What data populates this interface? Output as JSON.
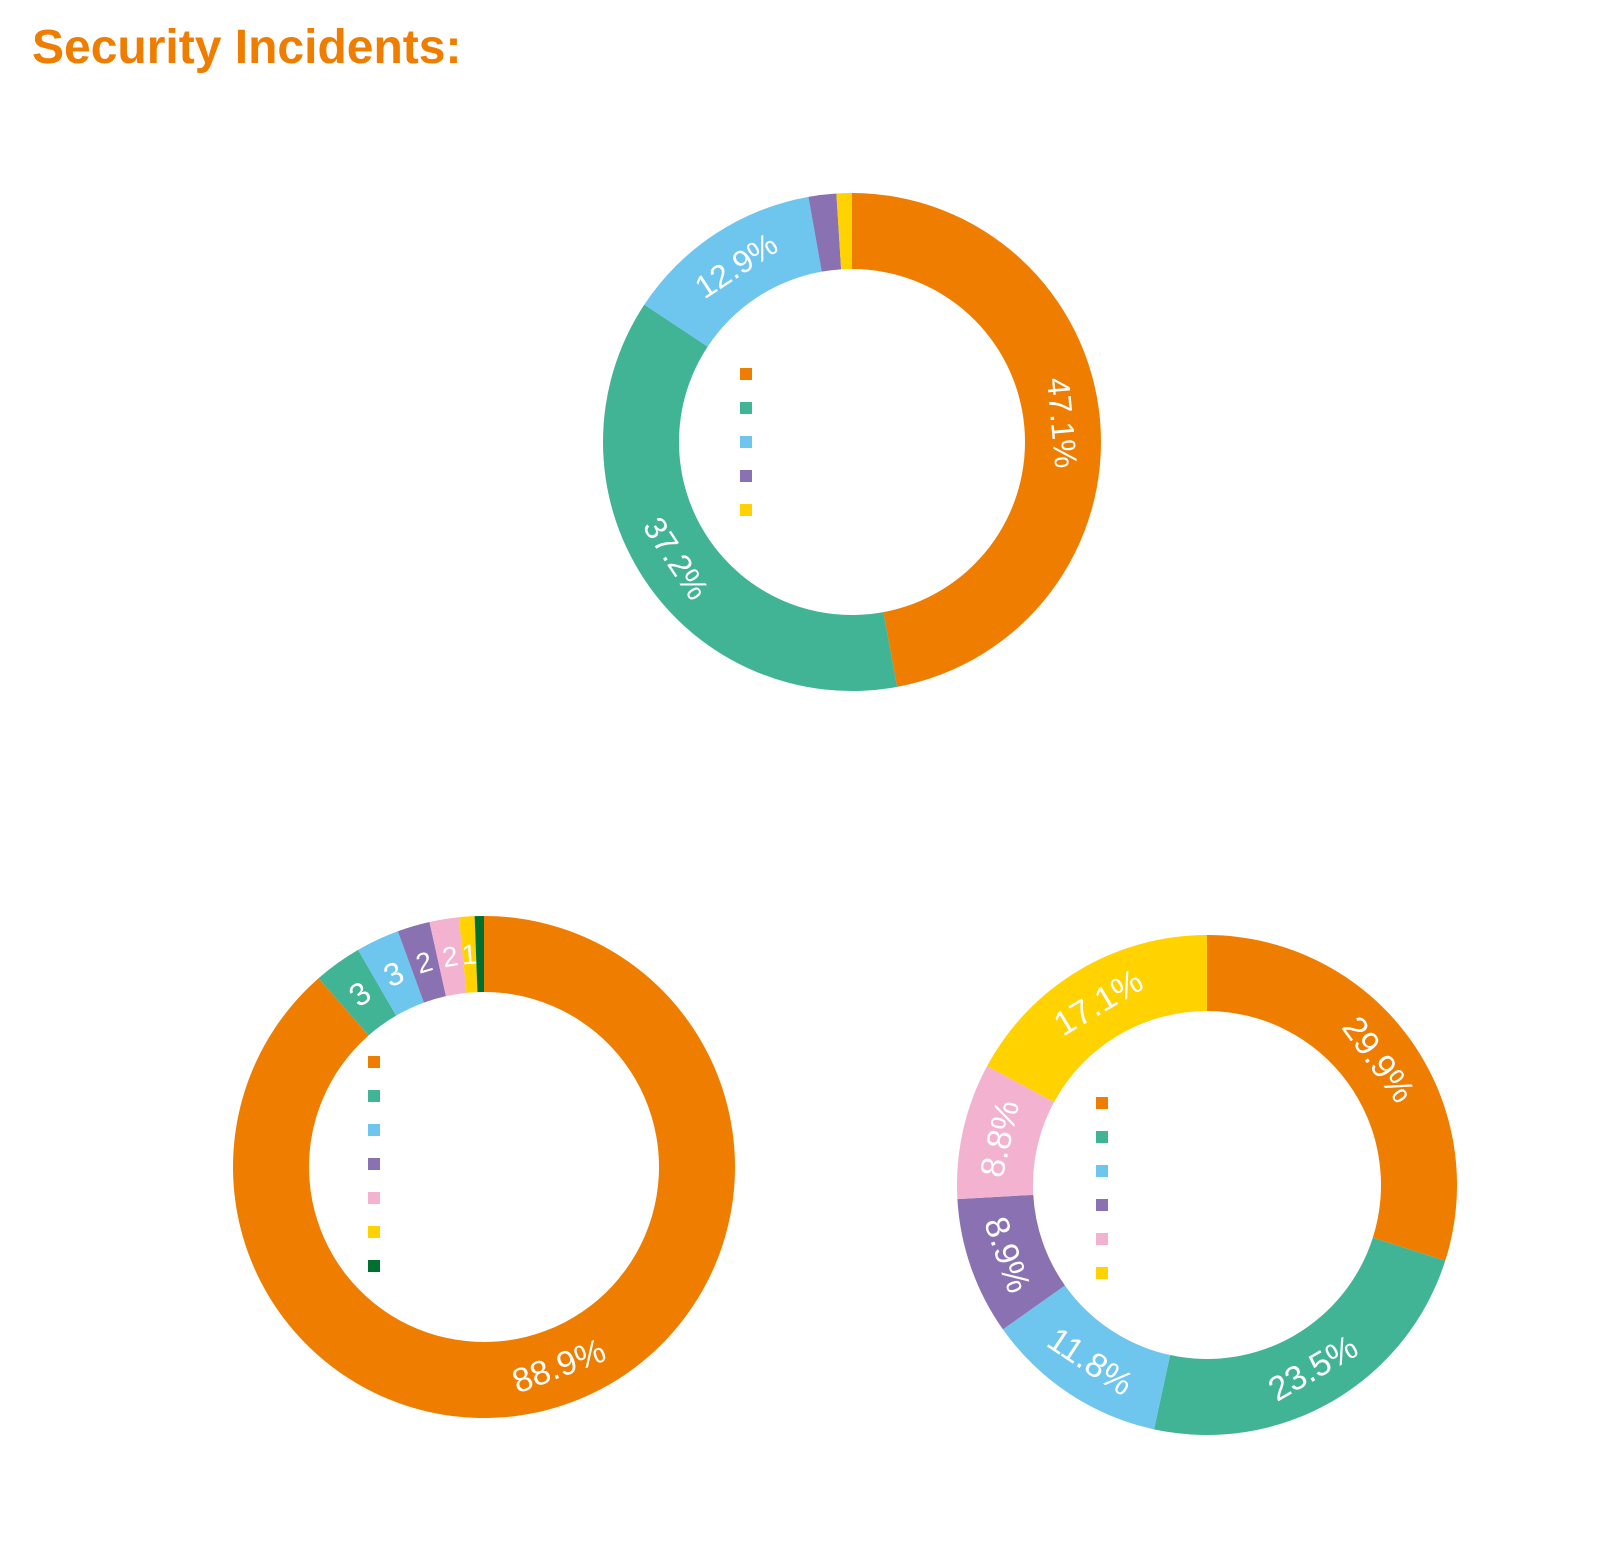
{
  "page": {
    "title": "Security Incidents:",
    "title_color": "#ef7d00"
  },
  "chart_data": [
    {
      "type": "pie",
      "style": "donut",
      "values": [
        47.1,
        37.2,
        12.9,
        1.8,
        1.0
      ],
      "labels": [
        "47.1%",
        "37.2%",
        "12.9%",
        "",
        ""
      ],
      "colors": [
        "#ef7d00",
        "#41b496",
        "#6ec6ee",
        "#8a72b2",
        "#ffd200"
      ],
      "legend": "inside-center"
    },
    {
      "type": "pie",
      "style": "donut",
      "values": [
        88.9,
        3.1,
        2.8,
        2.1,
        1.9,
        1.0,
        0.6
      ],
      "labels": [
        "88.9%",
        "3",
        "3",
        "2",
        "2",
        "1",
        ""
      ],
      "colors": [
        "#ef7d00",
        "#41b496",
        "#6ec6ee",
        "#8a72b2",
        "#f3b3d0",
        "#ffd200",
        "#00702f"
      ],
      "legend": "inside-center"
    },
    {
      "type": "pie",
      "style": "donut",
      "values": [
        29.9,
        23.5,
        11.8,
        8.9,
        8.8,
        17.1
      ],
      "labels": [
        "29.9%",
        "23.5%",
        "11.8%",
        "8.9%",
        "8.8%",
        "17.1%"
      ],
      "colors": [
        "#ef7d00",
        "#41b496",
        "#6ec6ee",
        "#8a72b2",
        "#f3b3d0",
        "#ffd200"
      ],
      "legend": "inside-center"
    }
  ]
}
